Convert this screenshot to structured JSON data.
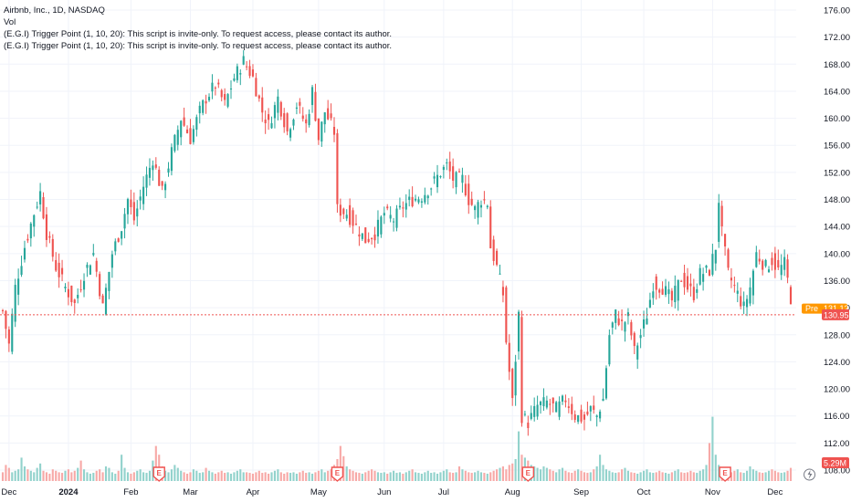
{
  "legend": {
    "symbol": "Airbnb, Inc., 1D, NASDAQ",
    "vol_label": "Vol",
    "indicator_1": "(E.G.I) Trigger Point  (1, 10, 20): This script is invite-only. To request access, please contact its author.",
    "indicator_2": "(E.G.I) Trigger Point  (1, 10, 20): This script is invite-only. To request access, please contact its author."
  },
  "price_badges": {
    "pre_label": "Pre",
    "pre_value": "131.12",
    "last_value": "130.95",
    "volume_value": "5.29M"
  },
  "earnings_marker": "E",
  "colors": {
    "up": "#26a69a",
    "down": "#ef5350",
    "up_volume": "#92d2cc",
    "down_volume": "#f7a9a7",
    "pre_badge": "#ff9800",
    "last_badge": "#ef5350",
    "grid": "#f0f3fa"
  },
  "chart_data": {
    "type": "candlestick",
    "title": "",
    "y_axis": {
      "ylim": [
        106,
        177
      ],
      "ticks": [
        "176.00",
        "172.00",
        "168.00",
        "164.00",
        "160.00",
        "156.00",
        "152.00",
        "148.00",
        "144.00",
        "140.00",
        "136.00",
        "132.00",
        "128.00",
        "124.00",
        "120.00",
        "116.00",
        "112.00",
        "108.00"
      ]
    },
    "x_axis": {
      "tick_labels": [
        {
          "label": "Dec",
          "index": 2,
          "bold": false
        },
        {
          "label": "2024",
          "index": 21,
          "bold": true
        },
        {
          "label": "Feb",
          "index": 41,
          "bold": false
        },
        {
          "label": "Mar",
          "index": 60,
          "bold": false
        },
        {
          "label": "Apr",
          "index": 80,
          "bold": false
        },
        {
          "label": "May",
          "index": 101,
          "bold": false
        },
        {
          "label": "Jun",
          "index": 122,
          "bold": false
        },
        {
          "label": "Jul",
          "index": 141,
          "bold": false
        },
        {
          "label": "Aug",
          "index": 163,
          "bold": false
        },
        {
          "label": "Sep",
          "index": 185,
          "bold": false
        },
        {
          "label": "Oct",
          "index": 205,
          "bold": false
        },
        {
          "label": "Nov",
          "index": 227,
          "bold": false
        },
        {
          "label": "Dec",
          "index": 247,
          "bold": false
        }
      ]
    },
    "earnings_at": [
      50,
      107,
      168,
      231
    ],
    "lightning_at": 258,
    "last_price": 130.95,
    "pre_price": 131.12,
    "ohlc_keypoints": [
      [
        0,
        131.5
      ],
      [
        2,
        126.5
      ],
      [
        4,
        135
      ],
      [
        7,
        141
      ],
      [
        10,
        146
      ],
      [
        12,
        149
      ],
      [
        14,
        143
      ],
      [
        17,
        138
      ],
      [
        20,
        135
      ],
      [
        23,
        132.5
      ],
      [
        26,
        137
      ],
      [
        29,
        140
      ],
      [
        32,
        132
      ],
      [
        35,
        140
      ],
      [
        38,
        144
      ],
      [
        40,
        148
      ],
      [
        42,
        145
      ],
      [
        45,
        150
      ],
      [
        48,
        154
      ],
      [
        51,
        149
      ],
      [
        54,
        155
      ],
      [
        57,
        160
      ],
      [
        60,
        157
      ],
      [
        63,
        161
      ],
      [
        65,
        163
      ],
      [
        68,
        165
      ],
      [
        71,
        162
      ],
      [
        74,
        166
      ],
      [
        77,
        168.5
      ],
      [
        80,
        166
      ],
      [
        83,
        161
      ],
      [
        85,
        159
      ],
      [
        88,
        163
      ],
      [
        91,
        158
      ],
      [
        94,
        162
      ],
      [
        97,
        159
      ],
      [
        99,
        164
      ],
      [
        101,
        157
      ],
      [
        103,
        161
      ],
      [
        105,
        159
      ],
      [
        106,
        158
      ],
      [
        107,
        146.5
      ],
      [
        110,
        146
      ],
      [
        113,
        144
      ],
      [
        116,
        142
      ],
      [
        119,
        143
      ],
      [
        122,
        146
      ],
      [
        125,
        145
      ],
      [
        128,
        147
      ],
      [
        131,
        148
      ],
      [
        134,
        148.5
      ],
      [
        137,
        150
      ],
      [
        140,
        152
      ],
      [
        142,
        153
      ],
      [
        144,
        151
      ],
      [
        147,
        151
      ],
      [
        149,
        148
      ],
      [
        151,
        146.5
      ],
      [
        153,
        148
      ],
      [
        155,
        147.5
      ],
      [
        156,
        141
      ],
      [
        158,
        138
      ],
      [
        160,
        134
      ],
      [
        161,
        127
      ],
      [
        163,
        118
      ],
      [
        165,
        131
      ],
      [
        166,
        116
      ],
      [
        168,
        115
      ],
      [
        171,
        117.5
      ],
      [
        174,
        118
      ],
      [
        177,
        117
      ],
      [
        180,
        118.5
      ],
      [
        183,
        116
      ],
      [
        186,
        115.5
      ],
      [
        188,
        117
      ],
      [
        190,
        116
      ],
      [
        192,
        118.5
      ],
      [
        194,
        128
      ],
      [
        196,
        131
      ],
      [
        198,
        129.5
      ],
      [
        200,
        130.5
      ],
      [
        202,
        125.5
      ],
      [
        204,
        128
      ],
      [
        206,
        131
      ],
      [
        208,
        135.5
      ],
      [
        211,
        135
      ],
      [
        214,
        133
      ],
      [
        217,
        136.5
      ],
      [
        219,
        135
      ],
      [
        221,
        134
      ],
      [
        223,
        137
      ],
      [
        226,
        137.5
      ],
      [
        228,
        141
      ],
      [
        229,
        148
      ],
      [
        230,
        143
      ],
      [
        232,
        137
      ],
      [
        235,
        134
      ],
      [
        237,
        132
      ],
      [
        239,
        135
      ],
      [
        241,
        140
      ],
      [
        244,
        138
      ],
      [
        246,
        139
      ],
      [
        248,
        137.5
      ],
      [
        250,
        138.5
      ],
      [
        251,
        136
      ],
      [
        253,
        130.95
      ]
    ],
    "volume_levels": [
      0.3,
      0.55,
      0.45,
      0.3,
      0.35,
      0.4,
      0.8,
      0.5,
      0.4,
      0.35,
      0.3,
      0.45,
      0.6,
      0.35,
      0.3,
      0.25,
      0.4,
      0.35,
      0.3,
      0.28,
      0.35,
      0.4,
      0.3,
      0.35,
      0.45,
      0.7,
      0.4,
      0.3,
      0.25,
      0.28,
      0.35,
      0.4,
      0.3,
      0.5,
      0.45,
      0.3,
      0.25,
      0.35,
      0.9,
      0.45,
      0.3,
      0.25,
      0.3,
      0.35,
      0.4,
      0.3,
      0.28,
      0.35,
      0.7,
      1.2,
      0.9,
      0.5,
      0.35,
      0.3,
      0.4,
      0.55,
      0.45,
      0.35,
      0.3,
      0.25,
      0.3,
      0.4,
      0.35,
      0.28,
      0.3,
      0.45,
      0.35,
      0.3,
      0.25,
      0.3,
      0.35,
      0.28,
      0.3,
      0.25,
      0.3,
      0.35,
      0.4,
      0.3,
      0.3,
      0.28,
      0.25,
      0.3,
      0.35,
      0.28,
      0.3,
      0.25,
      0.3,
      0.35,
      0.4,
      0.3,
      0.25,
      0.3,
      0.28,
      0.3,
      0.25,
      0.3,
      0.35,
      0.28,
      0.3,
      0.25,
      0.3,
      0.35,
      0.4,
      0.3,
      0.35,
      0.4,
      0.55,
      0.75,
      1.2,
      0.85,
      0.5,
      0.4,
      0.35,
      0.3,
      0.28,
      0.25,
      0.3,
      0.35,
      0.4,
      0.35,
      0.3,
      0.28,
      0.3,
      0.25,
      0.3,
      0.35,
      0.28,
      0.3,
      0.25,
      0.3,
      0.35,
      0.4,
      0.3,
      0.28,
      0.25,
      0.3,
      0.35,
      0.28,
      0.3,
      0.25,
      0.3,
      0.35,
      0.4,
      0.3,
      0.28,
      0.3,
      0.5,
      0.4,
      0.35,
      0.3,
      0.28,
      0.3,
      0.35,
      0.3,
      0.28,
      0.25,
      0.3,
      0.35,
      0.4,
      0.45,
      0.5,
      0.4,
      0.55,
      0.6,
      0.75,
      1.7,
      0.9,
      0.8,
      0.7,
      0.55,
      0.5,
      0.45,
      0.4,
      0.5,
      0.45,
      0.4,
      0.35,
      0.3,
      0.4,
      0.45,
      0.35,
      0.3,
      0.28,
      0.35,
      0.4,
      0.35,
      0.3,
      0.28,
      0.3,
      0.4,
      0.5,
      0.9,
      0.55,
      0.4,
      0.35,
      0.3,
      0.28,
      0.3,
      0.4,
      0.45,
      0.35,
      0.3,
      0.28,
      0.25,
      0.3,
      0.35,
      0.4,
      0.3,
      0.28,
      0.3,
      0.35,
      0.3,
      0.28,
      0.25,
      0.3,
      0.35,
      0.4,
      0.3,
      0.28,
      0.3,
      0.35,
      0.3,
      0.28,
      0.35,
      0.4,
      0.55,
      1.3,
      2.2,
      0.9,
      0.55,
      0.45,
      0.4,
      0.35,
      0.3,
      0.35,
      0.4,
      0.3,
      0.28,
      0.35,
      0.5,
      0.4,
      0.35,
      0.3,
      0.28,
      0.3,
      0.35,
      0.4,
      0.35,
      0.3,
      0.28,
      0.3,
      0.35,
      0.45
    ]
  }
}
